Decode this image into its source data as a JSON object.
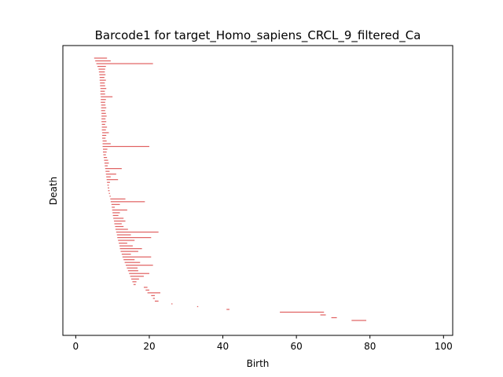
{
  "chart_data": {
    "type": "barcode",
    "title": "Barcode1 for target_Homo_sapiens_CRCL_9_filtered_Ca",
    "xlabel": "Birth",
    "ylabel": "Death",
    "xlim": [
      -3.5,
      102.5
    ],
    "x_ticks": [
      0,
      20,
      40,
      60,
      80,
      100
    ],
    "x_tick_labels": [
      "0",
      "20",
      "40",
      "60",
      "80",
      "100"
    ],
    "y_ticks_shown": false,
    "bar_color": "#e06060",
    "bars": [
      {
        "start": 5.0,
        "end": 8.5
      },
      {
        "start": 5.3,
        "end": 9.5
      },
      {
        "start": 5.6,
        "end": 21.0
      },
      {
        "start": 5.9,
        "end": 8.2
      },
      {
        "start": 6.2,
        "end": 8.0
      },
      {
        "start": 6.3,
        "end": 7.9
      },
      {
        "start": 6.4,
        "end": 8.1
      },
      {
        "start": 6.5,
        "end": 7.8
      },
      {
        "start": 6.5,
        "end": 8.2
      },
      {
        "start": 6.6,
        "end": 7.9
      },
      {
        "start": 6.6,
        "end": 8.0
      },
      {
        "start": 6.7,
        "end": 8.3
      },
      {
        "start": 6.7,
        "end": 7.9
      },
      {
        "start": 6.7,
        "end": 8.0
      },
      {
        "start": 6.8,
        "end": 10.0
      },
      {
        "start": 6.8,
        "end": 8.2
      },
      {
        "start": 6.8,
        "end": 8.0
      },
      {
        "start": 6.9,
        "end": 8.1
      },
      {
        "start": 6.9,
        "end": 8.3
      },
      {
        "start": 6.9,
        "end": 8.0
      },
      {
        "start": 7.0,
        "end": 8.2
      },
      {
        "start": 7.0,
        "end": 8.4
      },
      {
        "start": 7.0,
        "end": 8.1
      },
      {
        "start": 7.0,
        "end": 8.3
      },
      {
        "start": 7.1,
        "end": 8.0
      },
      {
        "start": 7.1,
        "end": 8.5
      },
      {
        "start": 7.1,
        "end": 8.2
      },
      {
        "start": 7.2,
        "end": 9.0
      },
      {
        "start": 7.2,
        "end": 8.3
      },
      {
        "start": 7.2,
        "end": 8.1
      },
      {
        "start": 7.3,
        "end": 8.4
      },
      {
        "start": 7.3,
        "end": 9.5
      },
      {
        "start": 7.3,
        "end": 20.0
      },
      {
        "start": 7.4,
        "end": 8.6
      },
      {
        "start": 7.4,
        "end": 8.4
      },
      {
        "start": 7.5,
        "end": 8.2
      },
      {
        "start": 7.6,
        "end": 8.5
      },
      {
        "start": 7.7,
        "end": 8.8
      },
      {
        "start": 7.8,
        "end": 9.0
      },
      {
        "start": 7.9,
        "end": 8.7
      },
      {
        "start": 8.0,
        "end": 12.5
      },
      {
        "start": 8.1,
        "end": 9.2
      },
      {
        "start": 8.2,
        "end": 11.0
      },
      {
        "start": 8.3,
        "end": 9.5
      },
      {
        "start": 8.4,
        "end": 11.5
      },
      {
        "start": 8.5,
        "end": 9.3
      },
      {
        "start": 8.6,
        "end": 9.0
      },
      {
        "start": 8.7,
        "end": 9.1
      },
      {
        "start": 8.8,
        "end": 9.2
      },
      {
        "start": 9.0,
        "end": 9.3
      },
      {
        "start": 9.2,
        "end": 9.5
      },
      {
        "start": 9.4,
        "end": 13.5
      },
      {
        "start": 9.5,
        "end": 18.8
      },
      {
        "start": 9.7,
        "end": 12.0
      },
      {
        "start": 9.8,
        "end": 10.6
      },
      {
        "start": 9.9,
        "end": 14.0
      },
      {
        "start": 10.0,
        "end": 12.0
      },
      {
        "start": 10.1,
        "end": 11.6
      },
      {
        "start": 10.2,
        "end": 13.0
      },
      {
        "start": 10.4,
        "end": 13.5
      },
      {
        "start": 10.5,
        "end": 12.5
      },
      {
        "start": 10.7,
        "end": 13.0
      },
      {
        "start": 10.8,
        "end": 14.2
      },
      {
        "start": 11.0,
        "end": 22.5
      },
      {
        "start": 11.2,
        "end": 15.0
      },
      {
        "start": 11.3,
        "end": 20.5
      },
      {
        "start": 11.5,
        "end": 16.0
      },
      {
        "start": 11.7,
        "end": 14.0
      },
      {
        "start": 11.9,
        "end": 15.5
      },
      {
        "start": 12.0,
        "end": 18.0
      },
      {
        "start": 12.2,
        "end": 17.0
      },
      {
        "start": 12.5,
        "end": 15.0
      },
      {
        "start": 12.7,
        "end": 20.5
      },
      {
        "start": 13.0,
        "end": 16.0
      },
      {
        "start": 13.3,
        "end": 17.5
      },
      {
        "start": 13.6,
        "end": 21.0
      },
      {
        "start": 13.9,
        "end": 16.8
      },
      {
        "start": 14.2,
        "end": 17.0
      },
      {
        "start": 14.5,
        "end": 20.0
      },
      {
        "start": 14.8,
        "end": 18.5
      },
      {
        "start": 15.1,
        "end": 17.2
      },
      {
        "start": 15.4,
        "end": 16.5
      },
      {
        "start": 15.7,
        "end": 16.3
      },
      {
        "start": 18.5,
        "end": 19.5
      },
      {
        "start": 19.0,
        "end": 20.0
      },
      {
        "start": 19.5,
        "end": 23.0
      },
      {
        "start": 20.5,
        "end": 21.5
      },
      {
        "start": 21.0,
        "end": 21.5
      },
      {
        "start": 21.5,
        "end": 22.5
      },
      {
        "start": 26.0,
        "end": 26.3
      },
      {
        "start": 33.0,
        "end": 33.3
      },
      {
        "start": 41.0,
        "end": 41.8
      },
      {
        "start": 55.5,
        "end": 67.5
      },
      {
        "start": 66.5,
        "end": 68.0
      },
      {
        "start": 69.5,
        "end": 71.0
      },
      {
        "start": 75.0,
        "end": 79.0
      }
    ]
  }
}
